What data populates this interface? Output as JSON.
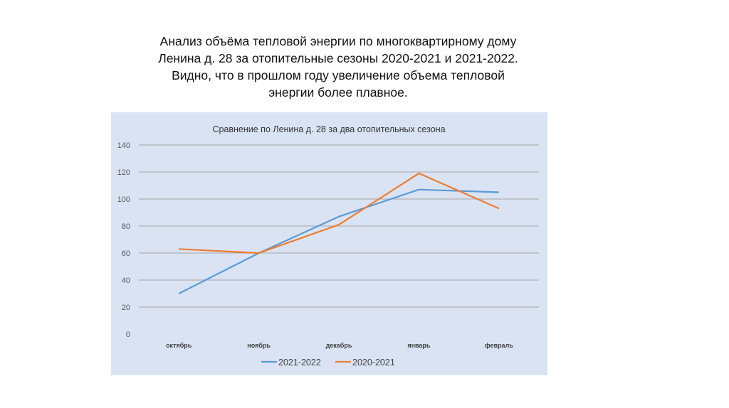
{
  "slide": {
    "heading_lines": [
      "Анализ объёма тепловой энергии по многоквартирному дому",
      "Ленина д. 28 за отопительные сезоны 2020-2021 и 2021-2022.",
      "Видно, что в прошлом году увеличение объема тепловой",
      "энергии более плавное."
    ]
  },
  "chart_data": {
    "type": "line",
    "title": "Сравнение по Ленина д. 28 за два отопительных сезона",
    "xlabel": "",
    "ylabel": "",
    "categories": [
      "октябрь",
      "ноябрь",
      "декабрь",
      "январь",
      "февраль"
    ],
    "ylim": [
      0,
      140
    ],
    "yticks": [
      0,
      20,
      40,
      60,
      80,
      100,
      120,
      140
    ],
    "grid": true,
    "legend_position": "bottom",
    "series": [
      {
        "name": "2021-2022",
        "color": "#5b9bd5",
        "values": [
          30,
          60,
          87,
          107,
          105
        ]
      },
      {
        "name": "2020-2021",
        "color": "#ed7d31",
        "values": [
          63,
          60,
          81,
          119,
          93
        ]
      }
    ],
    "background": "#dae3f3"
  }
}
